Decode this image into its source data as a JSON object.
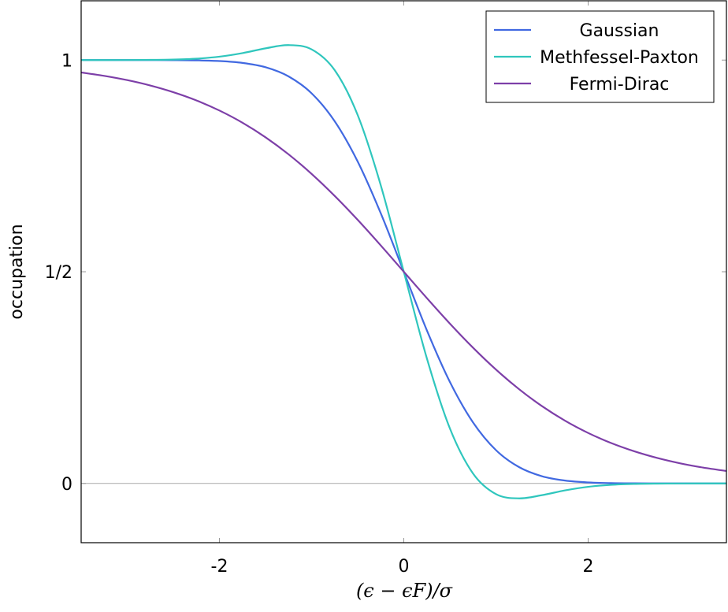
{
  "chart_data": {
    "type": "line",
    "title": "",
    "xlabel": "(ϵ − ϵF)/σ",
    "ylabel": "occupation",
    "xlim": [
      -3.5,
      3.5
    ],
    "ylim": [
      -0.14,
      1.14
    ],
    "grid": false,
    "legend_position": "top-right",
    "xticks": [
      {
        "value": -2,
        "label": "-2"
      },
      {
        "value": 0,
        "label": "0"
      },
      {
        "value": 2,
        "label": "2"
      }
    ],
    "yticks": [
      {
        "value": 0,
        "label": "0"
      },
      {
        "value": 0.5,
        "label": "1/2"
      },
      {
        "value": 1,
        "label": "1"
      }
    ],
    "x": [
      -3.5,
      -3.25,
      -3,
      -2.75,
      -2.5,
      -2.25,
      -2,
      -1.75,
      -1.5,
      -1.25,
      -1,
      -0.75,
      -0.5,
      -0.25,
      0,
      0.25,
      0.5,
      0.75,
      1,
      1.25,
      1.5,
      1.75,
      2,
      2.25,
      2.5,
      2.75,
      3,
      3.25,
      3.5
    ],
    "series": [
      {
        "name": "Gaussian",
        "color": "#4169e1",
        "values": [
          1,
          1,
          1,
          0.9999,
          0.9998,
          0.9993,
          0.9977,
          0.9933,
          0.9831,
          0.9614,
          0.9214,
          0.8556,
          0.7602,
          0.6382,
          0.5,
          0.3618,
          0.2398,
          0.1444,
          0.0786,
          0.0386,
          0.0169,
          0.0067,
          0.0023,
          0.0007,
          0.0002,
          0.0001,
          0,
          0,
          0
        ]
      },
      {
        "name": "Methfessel-Paxton",
        "color": "#2fc6bd",
        "values": [
          1,
          1,
          1.0001,
          1.0004,
          1.0012,
          1.0033,
          1.008,
          1.0164,
          1.0277,
          1.0353,
          1.0252,
          0.9762,
          0.87,
          0.7044,
          0.5,
          0.2956,
          0.13,
          0.0238,
          -0.0252,
          -0.0353,
          -0.0277,
          -0.0164,
          -0.008,
          -0.0033,
          -0.0012,
          -0.0004,
          -0.0001,
          0,
          0
        ]
      },
      {
        "name": "Fermi-Dirac",
        "color": "#7d3fa8",
        "values": [
          0.9707,
          0.9627,
          0.9526,
          0.9399,
          0.9241,
          0.9047,
          0.8808,
          0.852,
          0.8176,
          0.7773,
          0.7311,
          0.6792,
          0.6225,
          0.5622,
          0.5,
          0.4378,
          0.3775,
          0.3208,
          0.2689,
          0.2227,
          0.1824,
          0.148,
          0.1192,
          0.0953,
          0.0759,
          0.0601,
          0.0474,
          0.0373,
          0.0293
        ]
      }
    ]
  }
}
